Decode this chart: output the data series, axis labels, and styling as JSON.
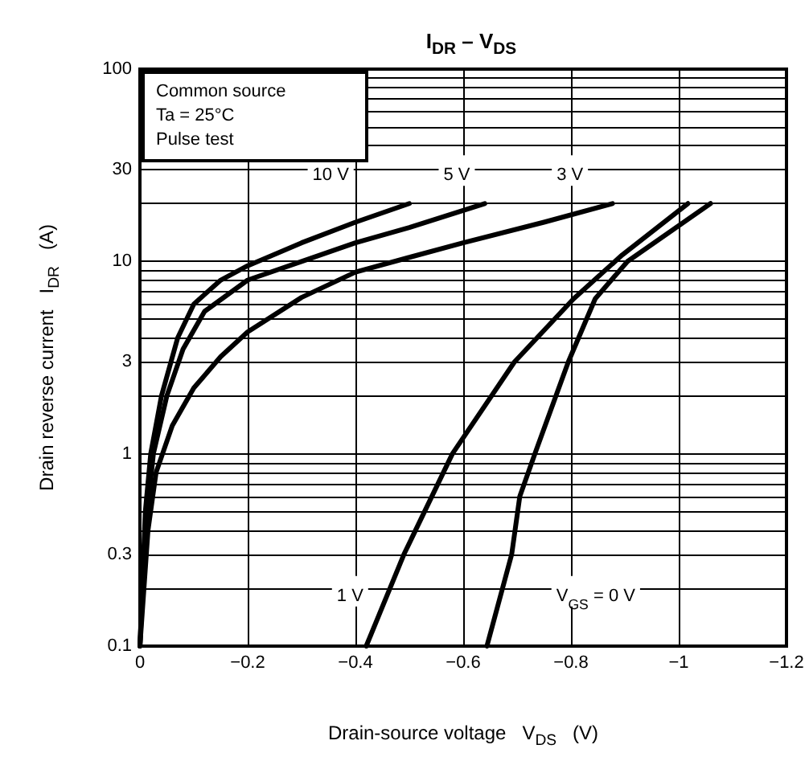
{
  "chart_data": {
    "type": "line",
    "title": "I$_{DR}$ – V$_{DS}$",
    "xlabel": "Drain-source voltage   V$_{DS}$   (V)",
    "ylabel": "Drain reverse current   I$_{DR}$   (A)",
    "xlim": [
      0,
      -1.2
    ],
    "xticks": [
      0,
      {
        "value": -0.2,
        "label": "−0.2"
      },
      {
        "value": -0.4,
        "label": "−0.4"
      },
      {
        "value": -0.6,
        "label": "−0.6"
      },
      {
        "value": -0.8,
        "label": "−0.8"
      },
      {
        "value": -1,
        "label": "−1"
      },
      {
        "value": -1.2,
        "label": "−1.2"
      }
    ],
    "ylim": [
      0.1,
      100
    ],
    "yticks": [
      0.1,
      0.3,
      1,
      3,
      10,
      30,
      100
    ],
    "log": "y",
    "grid": true,
    "marker": "none",
    "line_style": "solid",
    "series": [
      {
        "name": "10 V",
        "color": "#000000",
        "x": [
          0,
          -0.01,
          -0.02,
          -0.04,
          -0.07,
          -0.1,
          -0.15,
          -0.2,
          -0.3,
          -0.4,
          -0.5
        ],
        "values": [
          0.1,
          0.5,
          1,
          2,
          4,
          6,
          8,
          9.5,
          12.5,
          16,
          20
        ]
      },
      {
        "name": "5 V",
        "color": "#000000",
        "x": [
          0,
          -0.01,
          -0.025,
          -0.05,
          -0.08,
          -0.12,
          -0.2,
          -0.3,
          -0.4,
          -0.5,
          -0.64
        ],
        "values": [
          0.1,
          0.4,
          1,
          2,
          3.5,
          5.5,
          8,
          10,
          12.5,
          15,
          20
        ]
      },
      {
        "name": "3 V",
        "color": "#000000",
        "x": [
          0,
          -0.015,
          -0.03,
          -0.06,
          -0.1,
          -0.15,
          -0.2,
          -0.3,
          -0.4,
          -0.5,
          -0.6,
          -0.75,
          -0.877
        ],
        "values": [
          0.1,
          0.4,
          0.8,
          1.4,
          2.2,
          3.2,
          4.3,
          6.5,
          8.8,
          10.5,
          12.5,
          16,
          20
        ]
      },
      {
        "name": "1 V",
        "color": "#000000",
        "x": [
          -0.42,
          -0.49,
          -0.58,
          -0.695,
          -0.805,
          -0.895,
          -1.017
        ],
        "values": [
          0.1,
          0.3,
          1,
          3,
          6.4,
          10.8,
          20
        ]
      },
      {
        "name": "V$_{GS}$ = 0 V",
        "color": "#000000",
        "x": [
          -0.644,
          -0.69,
          -0.705,
          -0.733,
          -0.795,
          -0.845,
          -0.905,
          -1.059
        ],
        "values": [
          0.1,
          0.3,
          0.6,
          1,
          3,
          6.4,
          10,
          20
        ]
      }
    ],
    "annotations": [
      "Common source",
      "Ta = 25°C",
      "Pulse test"
    ]
  }
}
